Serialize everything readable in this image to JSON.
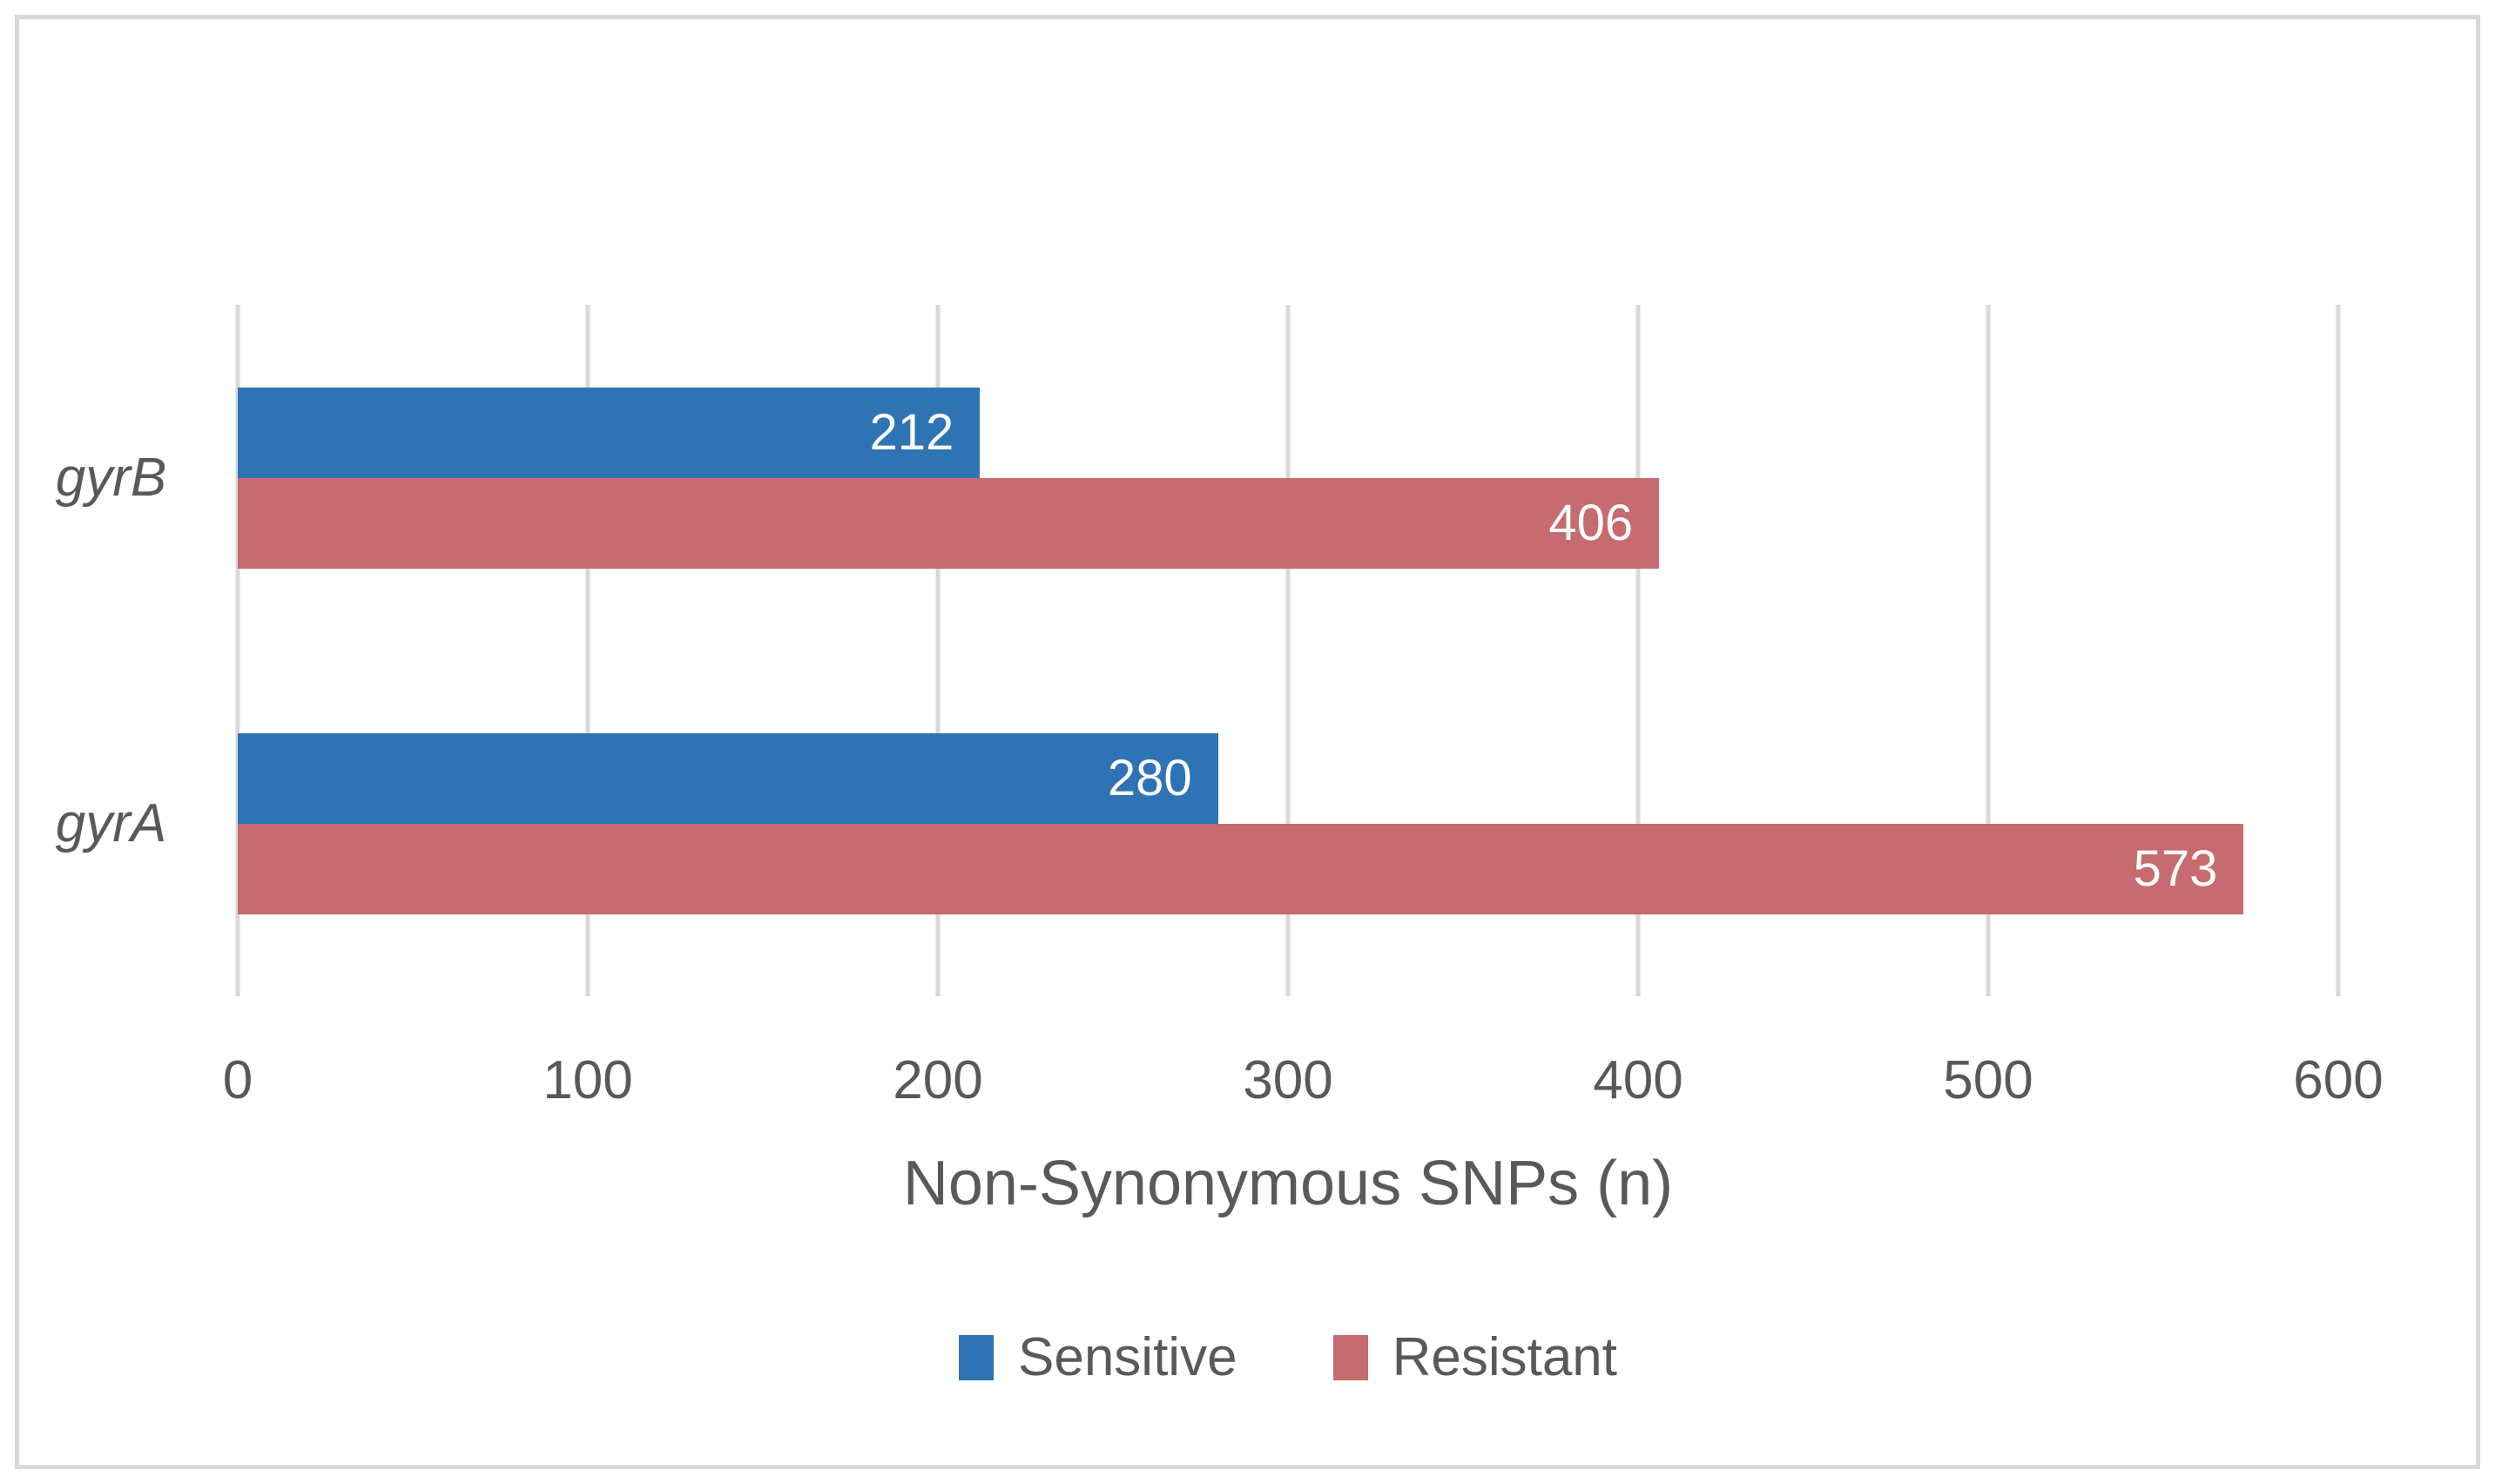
{
  "figure": {
    "background_color": "#FFFFFF",
    "border_color": "#D9D9D9",
    "axis_text_color": "#595959",
    "gridline_color": "#D9D9D9"
  },
  "chart_data": {
    "type": "bar",
    "orientation": "horizontal",
    "title": "",
    "categories": [
      "gyrB",
      "gyrA"
    ],
    "series": [
      {
        "name": "Sensitive",
        "color": "#2E74B5",
        "values": [
          212,
          280
        ]
      },
      {
        "name": "Resistant",
        "color": "#C66B70",
        "values": [
          406,
          573
        ]
      }
    ],
    "xlabel": "Non-Synonymous SNPs (n)",
    "ylabel": "",
    "xlim": [
      0,
      600
    ],
    "xticks": [
      0,
      100,
      200,
      300,
      400,
      500,
      600
    ],
    "grid": "vertical",
    "legend_position": "bottom",
    "data_labels": "inside-end",
    "data_label_color": "#FFFFFF"
  }
}
